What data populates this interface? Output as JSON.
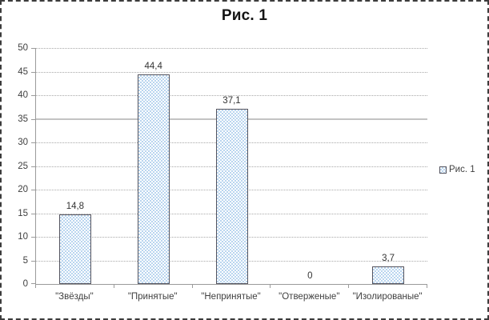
{
  "chart_data": {
    "type": "bar",
    "title": "Рис. 1",
    "categories": [
      "\"Звёзды\"",
      "\"Принятые\"",
      "\"Непринятые\"",
      "\"Отверженые\"",
      "\"Изолированые\""
    ],
    "values": [
      14.8,
      44.4,
      37.1,
      0,
      3.7
    ],
    "value_labels": [
      "14,8",
      "44,4",
      "37,1",
      "0",
      "3,7"
    ],
    "xlabel": "",
    "ylabel": "",
    "ylim": [
      0,
      50
    ],
    "yticks": [
      0,
      5,
      10,
      15,
      20,
      25,
      30,
      35,
      40,
      45,
      50
    ],
    "grid": "horizontal",
    "gridline_style": "dotted",
    "solid_gridline_value": 35,
    "legend": {
      "position": "right",
      "entries": [
        {
          "label": "Рис. 1",
          "swatch": "pattern-light-blue"
        }
      ]
    },
    "colors": {
      "bar_fill_base": "#ffffff",
      "bar_fill_pattern": "#b9d5ef",
      "bar_border": "#54545f",
      "axis": "#9b9b9b",
      "gridline": "#a9a9a9",
      "solid_gridline": "#c3c3c3",
      "label_text": "#3f3f3f",
      "title_text": "#141414",
      "frame_border": "#3c3c3c"
    }
  }
}
